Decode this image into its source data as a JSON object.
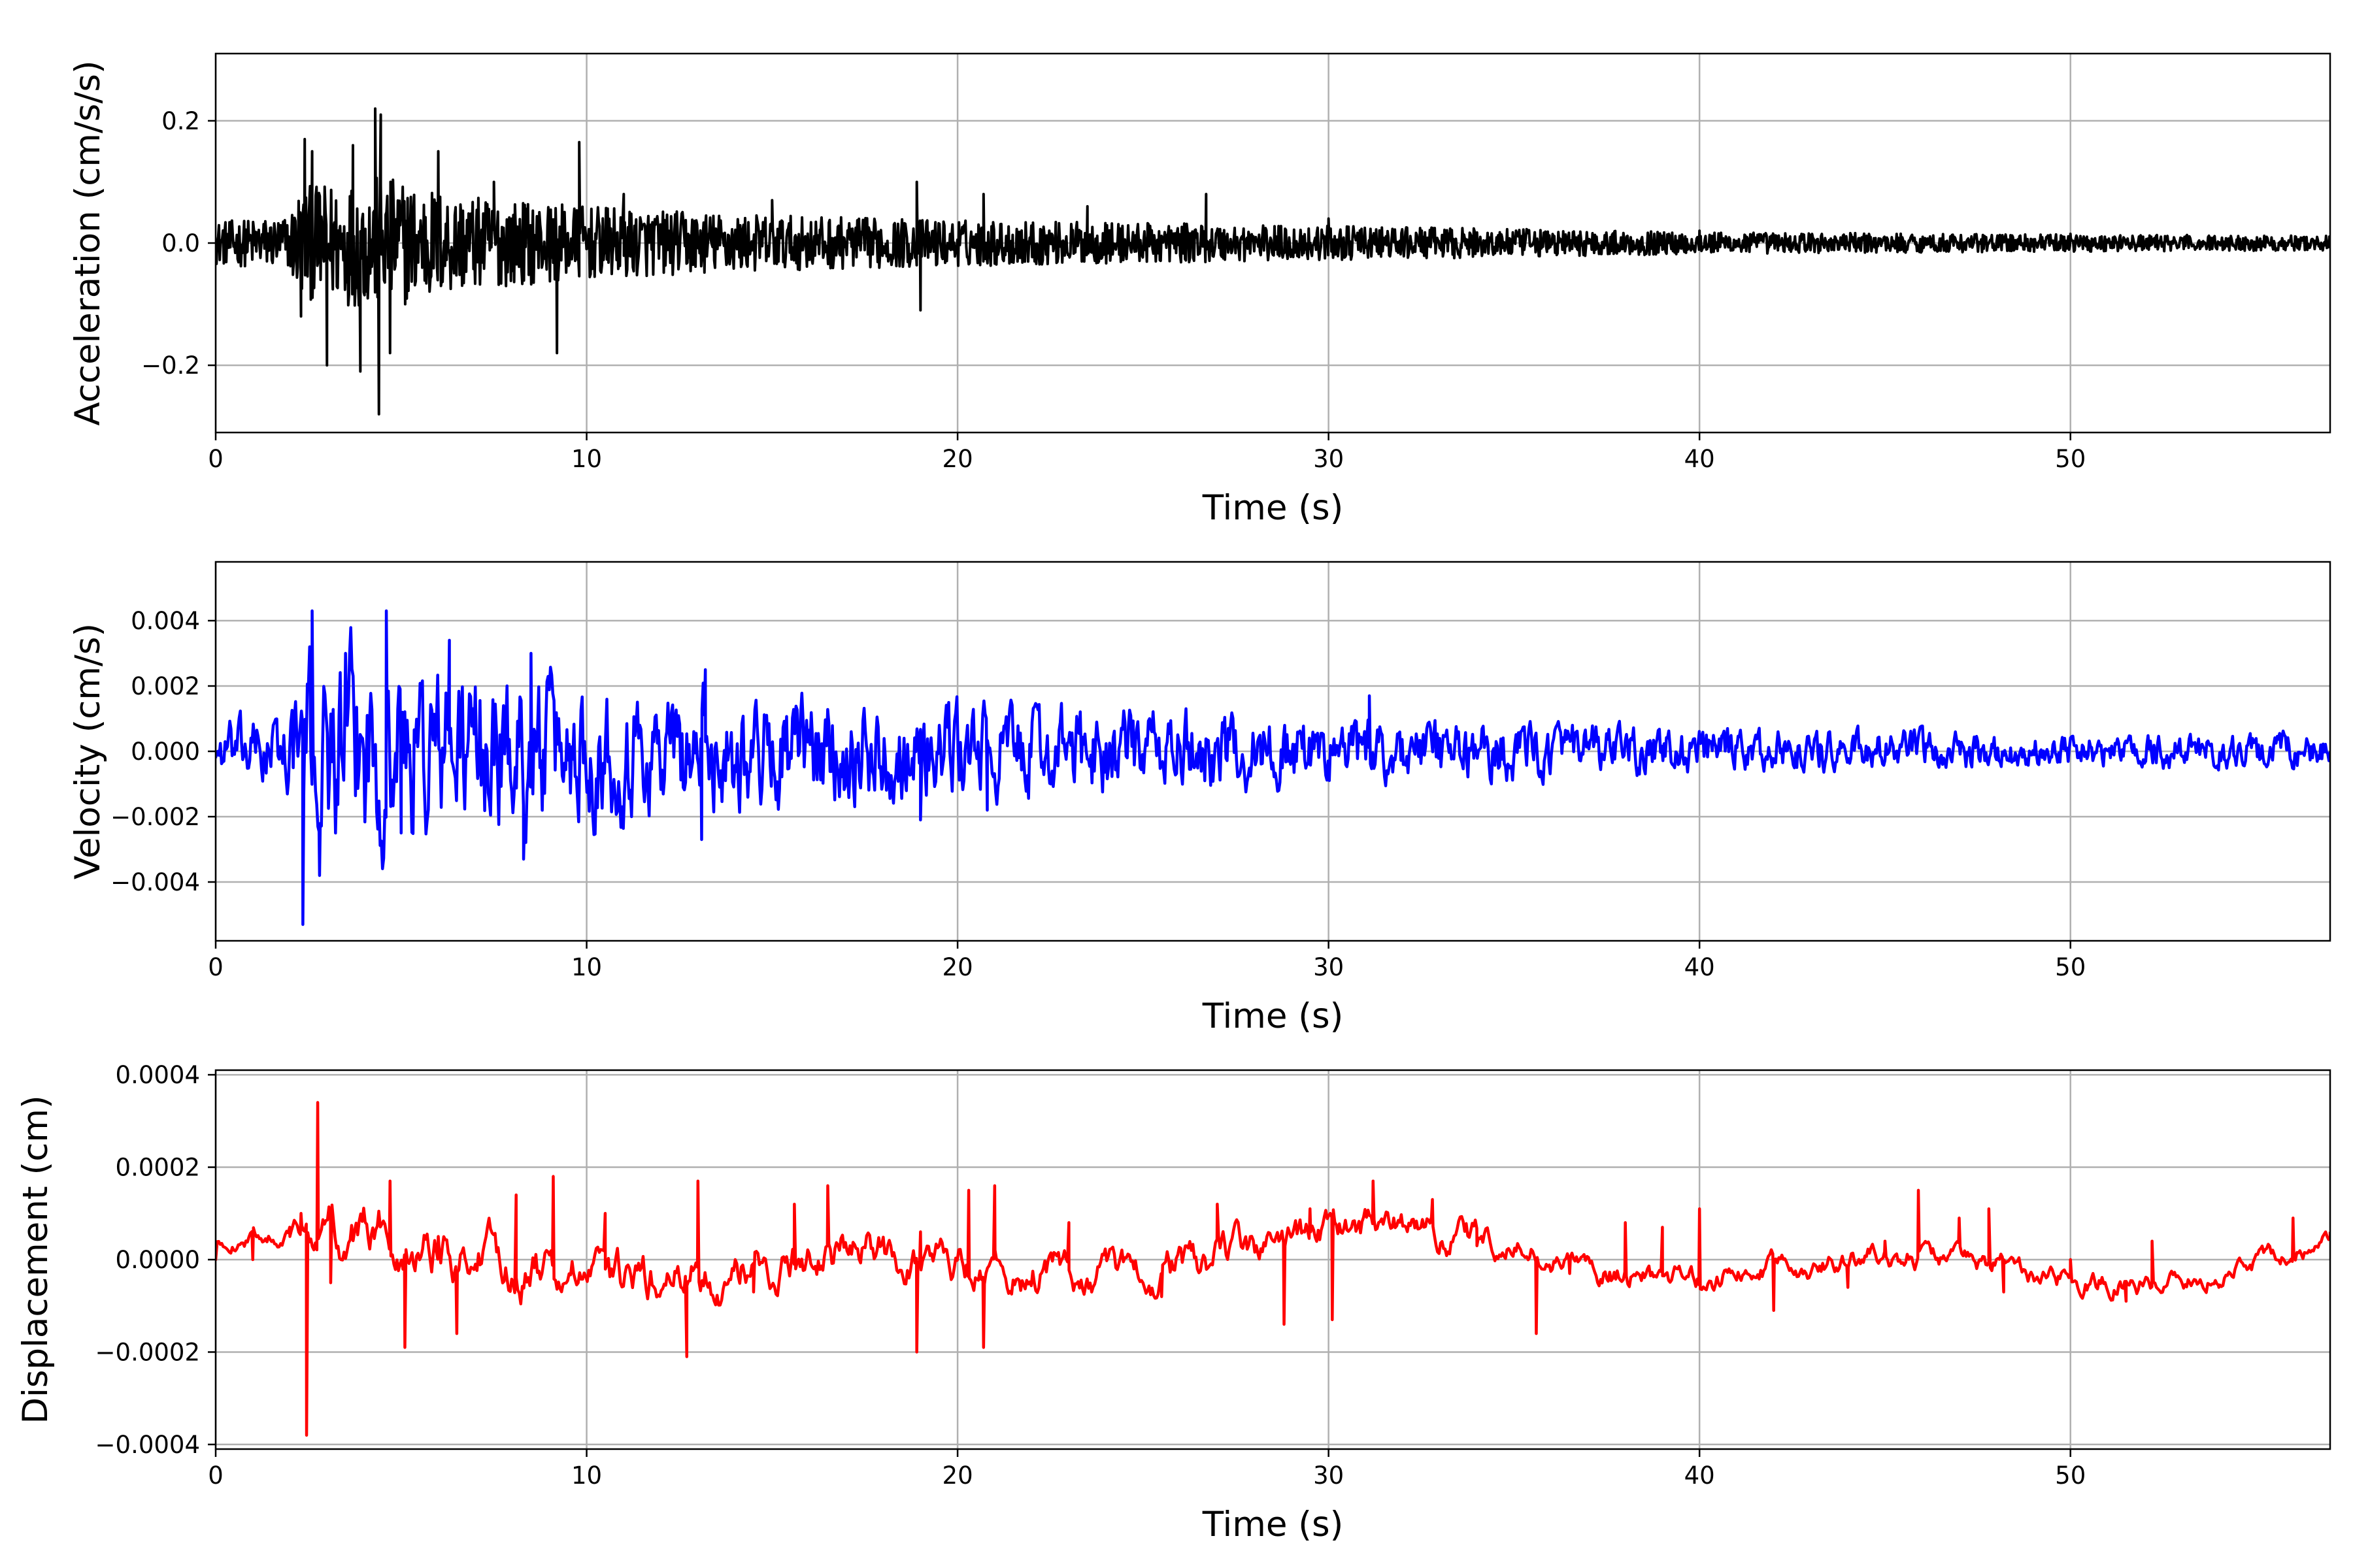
{
  "chart_data": [
    {
      "type": "line",
      "xlabel": "Time (s)",
      "ylabel": "Acceleration (cm/s/s)",
      "xlim": [
        0,
        57
      ],
      "ylim": [
        -0.31,
        0.31
      ],
      "xticks": [
        0,
        10,
        20,
        30,
        40,
        50
      ],
      "xtick_labels": [
        "0",
        "10",
        "20",
        "30",
        "40",
        "50"
      ],
      "yticks": [
        -0.2,
        0.0,
        0.2
      ],
      "ytick_labels": [
        "−0.2",
        "0.0",
        "0.2"
      ],
      "grid": true,
      "line_color": "#000000",
      "series": [
        {
          "x": [
            0.0,
            2.3,
            2.4,
            2.6,
            3.0,
            3.7,
            3.9,
            4.3,
            4.4,
            4.45,
            4.7,
            6.0,
            7.5,
            9.2,
            9.8,
            11.0,
            15.0,
            18.9,
            19.0,
            20.7,
            23.5,
            26.7,
            30.0,
            40.0,
            50.0,
            57.0
          ],
          "y": [
            0.0,
            -0.12,
            0.17,
            0.15,
            -0.2,
            0.16,
            -0.21,
            0.22,
            -0.28,
            0.21,
            -0.18,
            0.15,
            0.1,
            -0.18,
            0.165,
            0.08,
            0.07,
            0.1,
            -0.11,
            0.08,
            0.06,
            0.08,
            0.04,
            0.02,
            0.015,
            0.01
          ],
          "noise_envelope": [
            [
              0,
              0.035
            ],
            [
              2.0,
              0.045
            ],
            [
              2.2,
              0.09
            ],
            [
              4.5,
              0.11
            ],
            [
              7.0,
              0.075
            ],
            [
              10.0,
              0.06
            ],
            [
              15.0,
              0.045
            ],
            [
              20.0,
              0.038
            ],
            [
              30.0,
              0.028
            ],
            [
              40.0,
              0.018
            ],
            [
              50.0,
              0.014
            ],
            [
              57.0,
              0.012
            ]
          ]
        }
      ]
    },
    {
      "type": "line",
      "xlabel": "Time (s)",
      "ylabel": "Velocity (cm/s)",
      "xlim": [
        0,
        57
      ],
      "ylim": [
        -0.0058,
        0.0058
      ],
      "xticks": [
        0,
        10,
        20,
        30,
        40,
        50
      ],
      "xtick_labels": [
        "0",
        "10",
        "20",
        "30",
        "40",
        "50"
      ],
      "yticks": [
        -0.004,
        -0.002,
        0.0,
        0.002,
        0.004
      ],
      "ytick_labels": [
        "−0.004",
        "−0.002",
        "0.000",
        "0.002",
        "0.004"
      ],
      "grid": true,
      "line_color": "#0000ff",
      "series": [
        {
          "x": [
            0.0,
            2.35,
            2.6,
            2.8,
            3.5,
            4.6,
            5.0,
            6.3,
            8.3,
            8.5,
            13.2,
            13.1,
            19.0,
            20.8,
            31.1,
            57.0
          ],
          "y": [
            0.0,
            -0.0053,
            0.0043,
            -0.0038,
            0.003,
            0.0043,
            -0.0025,
            0.0034,
            -0.0033,
            0.003,
            0.0025,
            -0.0027,
            -0.0021,
            -0.0018,
            0.0017,
            0.0
          ],
          "noise_envelope": [
            [
              0,
              0.0006
            ],
            [
              2.0,
              0.0009
            ],
            [
              2.3,
              0.0022
            ],
            [
              5.0,
              0.0022
            ],
            [
              10.0,
              0.0016
            ],
            [
              15.0,
              0.0013
            ],
            [
              20.0,
              0.0011
            ],
            [
              30.0,
              0.0008
            ],
            [
              40.0,
              0.0005
            ],
            [
              50.0,
              0.0004
            ],
            [
              57.0,
              0.0004
            ]
          ]
        }
      ]
    },
    {
      "type": "line",
      "xlabel": "Time (s)",
      "ylabel": "Displacement (cm)",
      "xlim": [
        0,
        57
      ],
      "ylim": [
        -0.00041,
        0.00041
      ],
      "xticks": [
        0,
        10,
        20,
        30,
        40,
        50
      ],
      "xtick_labels": [
        "0",
        "10",
        "20",
        "30",
        "40",
        "50"
      ],
      "yticks": [
        -0.0004,
        -0.0002,
        0.0,
        0.0002,
        0.0004
      ],
      "ytick_labels": [
        "−0.0004",
        "−0.0002",
        "0.0000",
        "0.0002",
        "0.0004"
      ],
      "grid": true,
      "line_color": "#ff0000",
      "series": [
        {
          "x": [
            0.0,
            1.0,
            2.0,
            2.3,
            2.45,
            2.75,
            3.1,
            4.7,
            5.1,
            6.0,
            6.5,
            8.1,
            9.1,
            10.5,
            12.7,
            13.0,
            14.5,
            15.6,
            16.5,
            18.9,
            19.0,
            20.3,
            20.7,
            21.0,
            23.0,
            25.5,
            27.0,
            28.8,
            29.5,
            30.1,
            31.2,
            32.8,
            34.0,
            35.6,
            36.5,
            38.0,
            39.0,
            40.0,
            42.0,
            42.7,
            44.0,
            45.0,
            45.9,
            47.0,
            47.8,
            48.2,
            50.0,
            51.5,
            52.2,
            54.0,
            56.0,
            57.0
          ],
          "y": [
            0.0,
            0.0,
            5e-05,
            0.0001,
            -0.00038,
            0.00034,
            -5e-05,
            0.00017,
            -0.00019,
            5e-05,
            -0.00016,
            0.00014,
            0.00018,
            0.0001,
            -0.00021,
            0.00017,
            -7e-05,
            0.00012,
            0.00016,
            -0.0002,
            6e-05,
            0.00015,
            -0.00019,
            0.00016,
            8e-05,
            -8e-05,
            0.00012,
            -0.00014,
            0.00011,
            -0.00013,
            0.00017,
            0.00013,
            3e-05,
            -0.00016,
            -3e-05,
            8e-05,
            7e-05,
            0.00011,
            -0.00011,
            -3e-05,
            -6e-05,
            4e-05,
            0.00015,
            9e-05,
            0.00011,
            -7e-05,
            0.0,
            -9e-05,
            4e-05,
            -6e-05,
            9e-05,
            6e-05
          ],
          "noise_envelope": [
            [
              0,
              2e-05
            ],
            [
              2.0,
              3e-05
            ],
            [
              3.0,
              9e-05
            ],
            [
              10.0,
              8e-05
            ],
            [
              20.0,
              7e-05
            ],
            [
              30.0,
              6e-05
            ],
            [
              40.0,
              4e-05
            ],
            [
              50.0,
              4e-05
            ],
            [
              57.0,
              3e-05
            ]
          ]
        }
      ]
    }
  ]
}
